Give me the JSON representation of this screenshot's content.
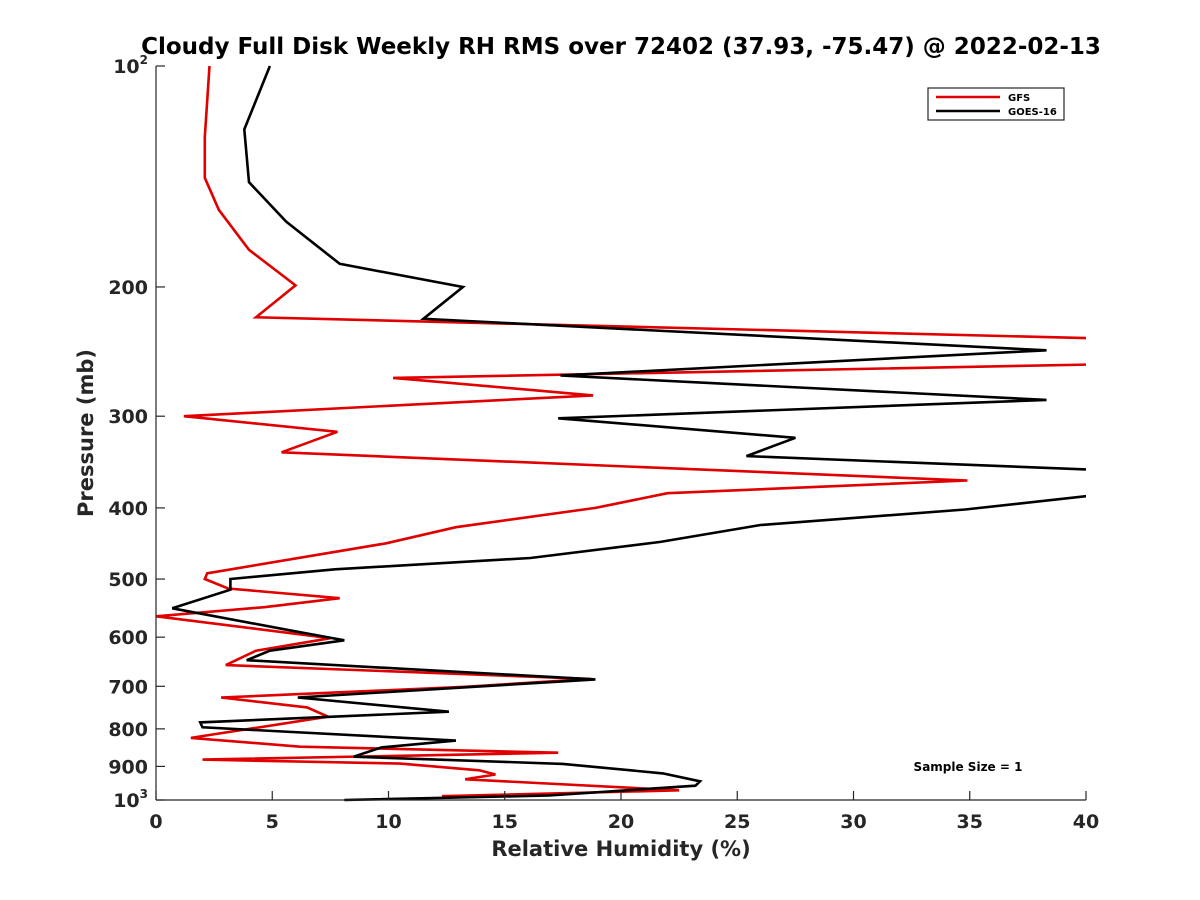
{
  "chart_data": {
    "type": "line",
    "title": "Cloudy Full Disk Weekly RH RMS over 72402 (37.93, -75.47) @ 2022-02-13",
    "xlabel": "Relative Humidity (%)",
    "ylabel": "Pressure (mb)",
    "xlim": [
      0,
      40
    ],
    "ylim": [
      100,
      1000
    ],
    "y_scale": "log",
    "y_reversed": true,
    "x_ticks": [
      "0",
      "5",
      "10",
      "15",
      "20",
      "25",
      "30",
      "35",
      "40"
    ],
    "y_ticks": [
      {
        "value": 100,
        "base": "10",
        "exp": "2"
      },
      {
        "value": 200,
        "label": "200"
      },
      {
        "value": 300,
        "label": "300"
      },
      {
        "value": 400,
        "label": "400"
      },
      {
        "value": 500,
        "label": "500"
      },
      {
        "value": 600,
        "label": "600"
      },
      {
        "value": 700,
        "label": "700"
      },
      {
        "value": 800,
        "label": "800"
      },
      {
        "value": 900,
        "label": "900"
      },
      {
        "value": 1000,
        "base": "10",
        "exp": "3"
      }
    ],
    "grid": false,
    "legend_position": "top-right",
    "annotation": "Sample Size = 1",
    "series": [
      {
        "name": "GFS",
        "color": "#e00000",
        "points": [
          [
            2.3,
            100
          ],
          [
            2.1,
            125
          ],
          [
            2.1,
            142
          ],
          [
            2.7,
            157
          ],
          [
            4.0,
            178
          ],
          [
            6.0,
            199
          ],
          [
            4.3,
            220
          ],
          [
            40.5,
            235
          ],
          [
            40.5,
            255
          ],
          [
            10.2,
            266
          ],
          [
            18.8,
            281
          ],
          [
            1.2,
            300
          ],
          [
            7.8,
            315
          ],
          [
            5.4,
            336
          ],
          [
            34.9,
            367
          ],
          [
            22.0,
            382
          ],
          [
            18.9,
            400
          ],
          [
            12.9,
            425
          ],
          [
            9.9,
            447
          ],
          [
            2.2,
            491
          ],
          [
            2.1,
            500
          ],
          [
            3.1,
            515
          ],
          [
            7.9,
            531
          ],
          [
            4.7,
            546
          ],
          [
            0.0,
            562
          ],
          [
            7.5,
            602
          ],
          [
            4.3,
            626
          ],
          [
            3.0,
            655
          ],
          [
            18.7,
            684
          ],
          [
            13.3,
            701
          ],
          [
            2.8,
            725
          ],
          [
            6.5,
            748
          ],
          [
            7.4,
            770
          ],
          [
            1.5,
            823
          ],
          [
            6.2,
            846
          ],
          [
            17.3,
            862
          ],
          [
            2.0,
            881
          ],
          [
            10.5,
            892
          ],
          [
            13.9,
            911
          ],
          [
            14.6,
            923
          ],
          [
            13.3,
            937
          ],
          [
            22.5,
            970
          ],
          [
            12.3,
            988
          ]
        ]
      },
      {
        "name": "GOES-16",
        "color": "#000000",
        "points": [
          [
            4.9,
            100
          ],
          [
            3.8,
            122
          ],
          [
            4.0,
            144
          ],
          [
            5.6,
            163
          ],
          [
            7.9,
            186
          ],
          [
            13.2,
            200
          ],
          [
            11.5,
            221
          ],
          [
            38.3,
            244
          ],
          [
            17.4,
            264
          ],
          [
            38.3,
            285
          ],
          [
            17.3,
            302
          ],
          [
            27.5,
            321
          ],
          [
            25.4,
            340
          ],
          [
            40.5,
            355
          ],
          [
            40.5,
            384
          ],
          [
            34.8,
            402
          ],
          [
            26.0,
            422
          ],
          [
            21.7,
            445
          ],
          [
            16.1,
            468
          ],
          [
            7.7,
            485
          ],
          [
            3.2,
            500
          ],
          [
            3.2,
            517
          ],
          [
            0.7,
            548
          ],
          [
            6.1,
            590
          ],
          [
            8.1,
            606
          ],
          [
            4.9,
            626
          ],
          [
            3.9,
            645
          ],
          [
            18.9,
            685
          ],
          [
            6.1,
            725
          ],
          [
            12.6,
            758
          ],
          [
            1.9,
            784
          ],
          [
            2.0,
            796
          ],
          [
            12.9,
            830
          ],
          [
            9.7,
            848
          ],
          [
            8.5,
            873
          ],
          [
            17.5,
            893
          ],
          [
            21.8,
            920
          ],
          [
            23.4,
            943
          ],
          [
            23.2,
            956
          ],
          [
            16.9,
            986
          ],
          [
            8.1,
            1000
          ]
        ]
      }
    ]
  }
}
